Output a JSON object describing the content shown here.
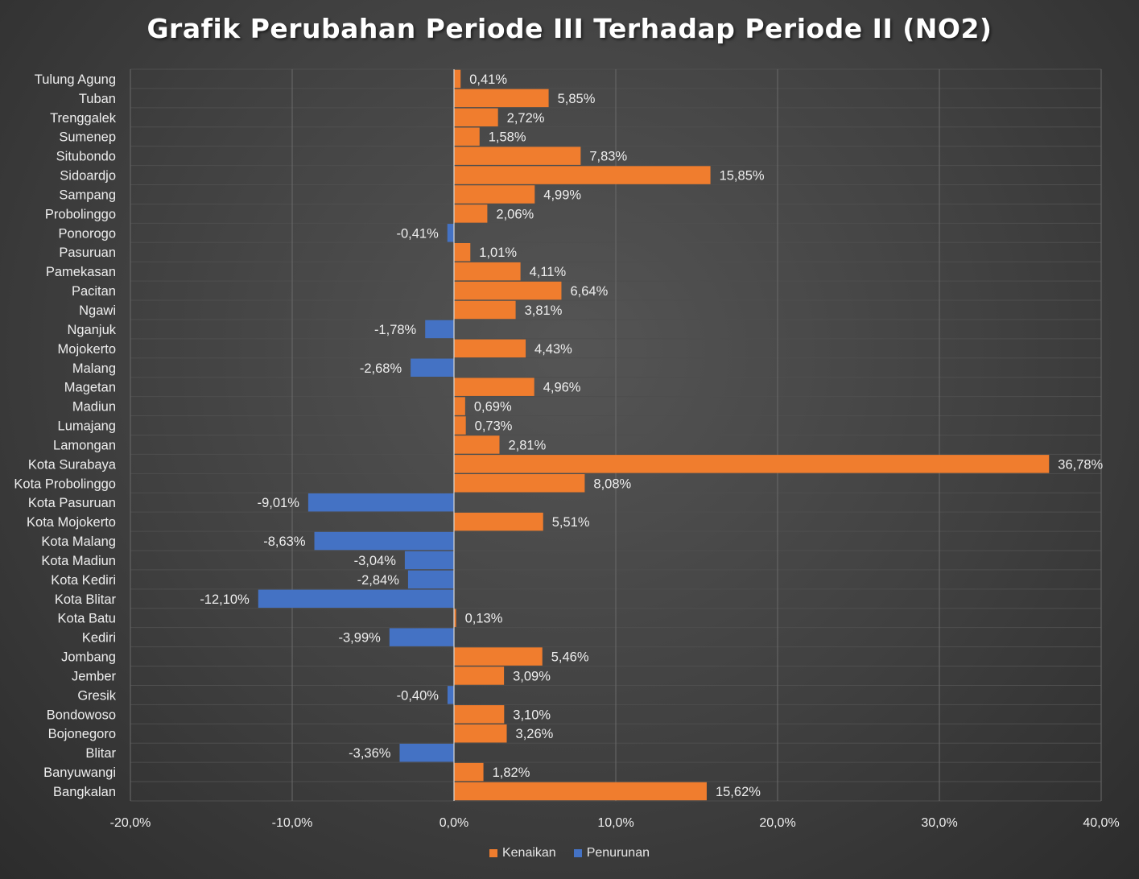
{
  "colors": {
    "increase": "#f07d2e",
    "decrease": "#4472c4",
    "background": "#404040",
    "gridline": "#6a6a6a",
    "text": "#eeeeee"
  },
  "chart_data": {
    "type": "bar",
    "orientation": "horizontal",
    "title": "Grafik Perubahan Periode III Terhadap Periode II (NO2)",
    "xlabel": "",
    "ylabel": "",
    "xlim": [
      -20,
      40
    ],
    "x_ticks": [
      "-20,0%",
      "-10,0%",
      "0,0%",
      "10,0%",
      "20,0%",
      "30,0%",
      "40,0%"
    ],
    "x_tick_values": [
      -20,
      -10,
      0,
      10,
      20,
      30,
      40
    ],
    "grid": true,
    "legend_position": "bottom",
    "legend": [
      {
        "label": "Kenaikan",
        "color": "#f07d2e"
      },
      {
        "label": "Penurunan",
        "color": "#4472c4"
      }
    ],
    "categories": [
      "Tulung Agung",
      "Tuban",
      "Trenggalek",
      "Sumenep",
      "Situbondo",
      "Sidoardjo",
      "Sampang",
      "Probolinggo",
      "Ponorogo",
      "Pasuruan",
      "Pamekasan",
      "Pacitan",
      "Ngawi",
      "Nganjuk",
      "Mojokerto",
      "Malang",
      "Magetan",
      "Madiun",
      "Lumajang",
      "Lamongan",
      "Kota Surabaya",
      "Kota Probolinggo",
      "Kota Pasuruan",
      "Kota Mojokerto",
      "Kota Malang",
      "Kota Madiun",
      "Kota Kediri",
      "Kota Blitar",
      "Kota Batu",
      "Kediri",
      "Jombang",
      "Jember",
      "Gresik",
      "Bondowoso",
      "Bojonegoro",
      "Blitar",
      "Banyuwangi",
      "Bangkalan"
    ],
    "values": [
      0.41,
      5.85,
      2.72,
      1.58,
      7.83,
      15.85,
      4.99,
      2.06,
      -0.41,
      1.01,
      4.11,
      6.64,
      3.81,
      -1.78,
      4.43,
      -2.68,
      4.96,
      0.69,
      0.73,
      2.81,
      36.78,
      8.08,
      -9.01,
      5.51,
      -8.63,
      -3.04,
      -2.84,
      -12.1,
      0.13,
      -3.99,
      5.46,
      3.09,
      -0.4,
      3.1,
      3.26,
      -3.36,
      1.82,
      15.62
    ],
    "data_labels": [
      "0,41%",
      "5,85%",
      "2,72%",
      "1,58%",
      "7,83%",
      "15,85%",
      "4,99%",
      "2,06%",
      "-0,41%",
      "1,01%",
      "4,11%",
      "6,64%",
      "3,81%",
      "-1,78%",
      "4,43%",
      "-2,68%",
      "4,96%",
      "0,69%",
      "0,73%",
      "2,81%",
      "36,78%",
      "8,08%",
      "-9,01%",
      "5,51%",
      "-8,63%",
      "-3,04%",
      "-2,84%",
      "-12,10%",
      "0,13%",
      "-3,99%",
      "5,46%",
      "3,09%",
      "-0,40%",
      "3,10%",
      "3,26%",
      "-3,36%",
      "1,82%",
      "15,62%"
    ]
  }
}
